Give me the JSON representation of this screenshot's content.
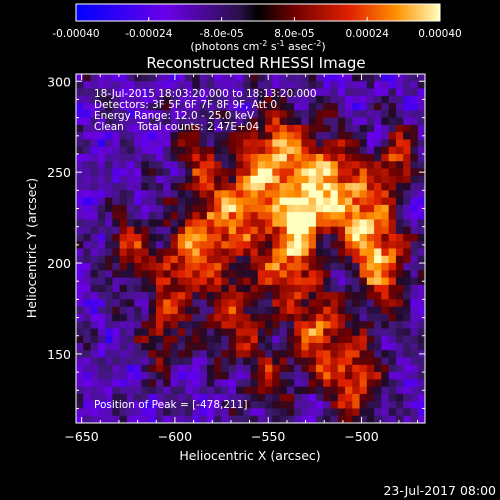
{
  "chart_data": {
    "type": "heatmap",
    "title": "Reconstructed RHESSI Image",
    "xlabel": "Heliocentric X (arcsec)",
    "ylabel": "Heliocentric Y (arcsec)",
    "xlim": [
      -653,
      -466
    ],
    "ylim": [
      112,
      304
    ],
    "x_ticks": [
      -650,
      -600,
      -550,
      -500
    ],
    "y_ticks": [
      150,
      200,
      250,
      300
    ],
    "colorbar": {
      "ticks": [
        -0.0004,
        -0.00024,
        -8e-05,
        8e-05,
        0.00024,
        0.0004
      ],
      "tick_labels": [
        "-0.00040",
        "-0.00024",
        "-8.0e-05",
        "8.0e-05",
        "0.00024",
        "0.00040"
      ],
      "unit_label": "(photons cm-2 s-1 asec-2)",
      "unit_parts": {
        "a": "(photons cm",
        "b": "-2",
        "c": " s",
        "d": "-1",
        "e": " asec",
        "f": "-2",
        "g": ")"
      },
      "range": [
        -0.0004,
        0.0004
      ]
    },
    "annotations": [
      "18-Jul-2015 18:03:20.000 to 18:13:20.000",
      "Detectors: 3F 5F 6F 7F 8F 9F, Att 0",
      "Energy Range: 12.0 - 25.0 keV",
      "Clean    Total counts: 2.47E+04"
    ],
    "peak_label": "Position of Peak = [-478,211]",
    "grid": "off"
  },
  "footer": {
    "date": "23-Jul-2017 08:00"
  },
  "colors": {
    "background": "#000000",
    "foreground": "#ffffff"
  }
}
